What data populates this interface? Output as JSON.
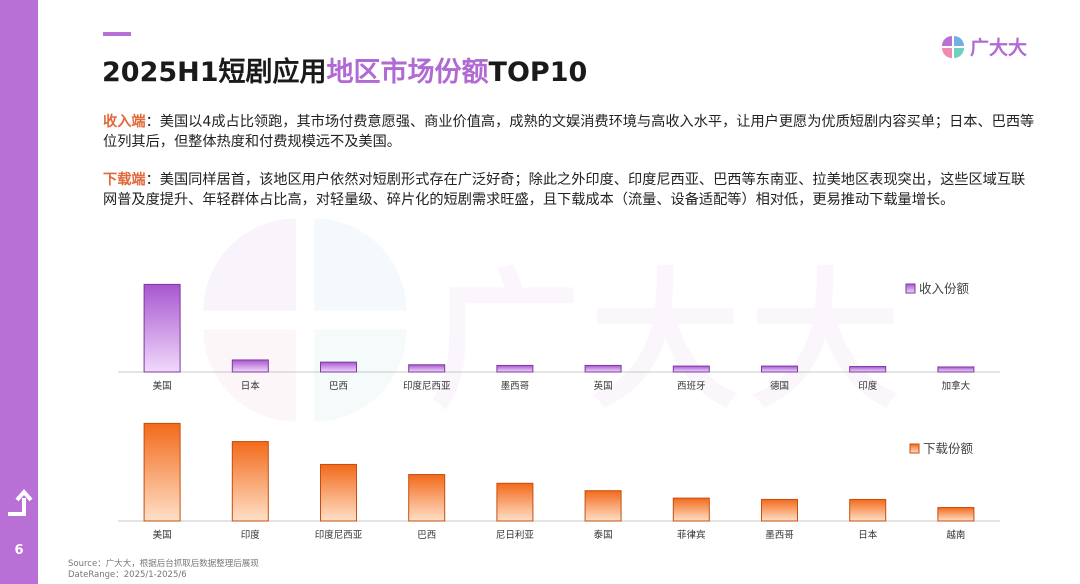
{
  "page": {
    "page_number": "6",
    "title_prefix": "2025H1短剧应用",
    "title_highlight": "地区市场份额",
    "title_suffix": "TOP10",
    "logo_text": "广大大"
  },
  "paragraphs": {
    "revenue_label": "收入端",
    "revenue_text": "：美国以4成占比领跑，其市场付费意愿强、商业价值高，成熟的文娱消费环境与高收入水平，让用户更愿为优质短剧内容买单；日本、巴西等位列其后，但整体热度和付费规模远不及美国。",
    "download_label": "下载端",
    "download_text": "：美国同样居首，该地区用户依然对短剧形式存在广泛好奇；除此之外印度、印度尼西亚、巴西等东南亚、拉美地区表现突出，这些区域互联网普及度提升、年轻群体占比高，对轻量级、碎片化的短剧需求旺盛，且下载成本（流量、设备适配等）相对低，更易推动下载量增长。"
  },
  "footer": {
    "source": "Source：广大大，根据后台抓取后数据整理后展现",
    "date_range": "DateRange：2025/1-2025/6"
  },
  "colors": {
    "accent": "#b06ad3",
    "sidebar": "#b86fd6",
    "revenue_bar": "#c98be3",
    "download_bar": "#fb8a47",
    "label_orange": "#e2683a"
  },
  "chart_data": [
    {
      "type": "bar",
      "title": "",
      "legend": "收入份额",
      "legend_position": "right",
      "categories": [
        "美国",
        "日本",
        "巴西",
        "印度尼西亚",
        "墨西哥",
        "英国",
        "西班牙",
        "德国",
        "印度",
        "加拿大"
      ],
      "values": [
        40,
        5.5,
        4.5,
        3.3,
        3.0,
        3.0,
        2.7,
        2.7,
        2.5,
        2.3
      ],
      "ylim": [
        0,
        42
      ],
      "grid": false
    },
    {
      "type": "bar",
      "title": "",
      "legend": "下载份额",
      "legend_position": "right",
      "categories": [
        "美国",
        "印度",
        "印度尼西亚",
        "巴西",
        "尼日利亚",
        "泰国",
        "菲律宾",
        "墨西哥",
        "日本",
        "越南"
      ],
      "values": [
        14.5,
        11.8,
        8.4,
        6.9,
        5.6,
        4.5,
        3.4,
        3.2,
        3.2,
        2.0
      ],
      "ylim": [
        0,
        15
      ],
      "grid": false
    }
  ]
}
